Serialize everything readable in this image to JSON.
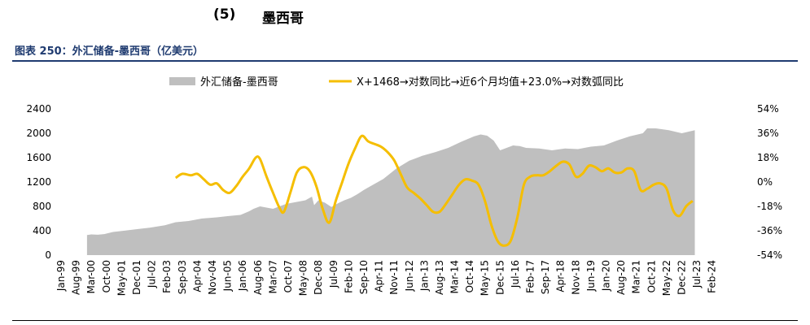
{
  "heading": {
    "number": "(5)",
    "title": "墨西哥"
  },
  "figure_title": "图表 250：外汇储备-墨西哥（亿美元）",
  "chart_data": {
    "type": "area",
    "left_axis": {
      "min": 0,
      "max": 2400,
      "ticks": [
        "2400",
        "2000",
        "1600",
        "1200",
        "800",
        "400",
        "0"
      ]
    },
    "right_axis": {
      "min": -54,
      "max": 54,
      "ticks": [
        "54%",
        "36%",
        "18%",
        "0%",
        "-18%",
        "-36%",
        "-54%"
      ]
    },
    "x_range": [
      "1999-01",
      "2024-07"
    ],
    "x_tick_labels": [
      "Jan-99",
      "Aug-99",
      "Mar-00",
      "Oct-00",
      "May-01",
      "Dec-01",
      "Jul-02",
      "Feb-03",
      "Sep-03",
      "Apr-04",
      "Nov-04",
      "Jun-05",
      "Jan-06",
      "Aug-06",
      "Mar-07",
      "Oct-07",
      "May-08",
      "Dec-08",
      "Jul-09",
      "Feb-10",
      "Sep-10",
      "Apr-11",
      "Nov-11",
      "Jun-12",
      "Jan-13",
      "Aug-13",
      "Mar-14",
      "Oct-14",
      "May-15",
      "Dec-15",
      "Jul-16",
      "Feb-17",
      "Sep-17",
      "Apr-18",
      "Nov-18",
      "Jun-19",
      "Jan-20",
      "Aug-20",
      "Mar-21",
      "Oct-21",
      "May-22",
      "Dec-22",
      "Jul-23",
      "Feb-24"
    ],
    "legend": {
      "position": "top"
    },
    "series": [
      {
        "name": "外汇储备-墨西哥",
        "axis": "left",
        "color": "#bfbfbf",
        "points": [
          [
            "2000-01",
            330
          ],
          [
            "2000-03",
            340
          ],
          [
            "2000-06",
            335
          ],
          [
            "2000-09",
            345
          ],
          [
            "2001-01",
            380
          ],
          [
            "2001-06",
            400
          ],
          [
            "2002-01",
            430
          ],
          [
            "2002-06",
            450
          ],
          [
            "2003-01",
            490
          ],
          [
            "2003-06",
            540
          ],
          [
            "2003-12",
            560
          ],
          [
            "2004-06",
            600
          ],
          [
            "2005-01",
            620
          ],
          [
            "2005-06",
            640
          ],
          [
            "2005-12",
            660
          ],
          [
            "2006-04",
            720
          ],
          [
            "2006-06",
            760
          ],
          [
            "2006-09",
            800
          ],
          [
            "2006-12",
            780
          ],
          [
            "2007-03",
            760
          ],
          [
            "2007-06",
            800
          ],
          [
            "2007-09",
            840
          ],
          [
            "2007-12",
            860
          ],
          [
            "2008-03",
            880
          ],
          [
            "2008-06",
            900
          ],
          [
            "2008-09",
            960
          ],
          [
            "2008-10",
            820
          ],
          [
            "2008-12",
            900
          ],
          [
            "2009-03",
            860
          ],
          [
            "2009-06",
            790
          ],
          [
            "2009-09",
            850
          ],
          [
            "2009-12",
            900
          ],
          [
            "2010-03",
            940
          ],
          [
            "2010-06",
            1000
          ],
          [
            "2010-09",
            1070
          ],
          [
            "2010-12",
            1130
          ],
          [
            "2011-06",
            1250
          ],
          [
            "2011-12",
            1420
          ],
          [
            "2012-06",
            1550
          ],
          [
            "2012-12",
            1630
          ],
          [
            "2013-06",
            1690
          ],
          [
            "2013-12",
            1760
          ],
          [
            "2014-06",
            1860
          ],
          [
            "2014-12",
            1950
          ],
          [
            "2015-03",
            1980
          ],
          [
            "2015-06",
            1960
          ],
          [
            "2015-09",
            1880
          ],
          [
            "2015-12",
            1720
          ],
          [
            "2016-03",
            1760
          ],
          [
            "2016-06",
            1800
          ],
          [
            "2016-09",
            1790
          ],
          [
            "2016-12",
            1760
          ],
          [
            "2017-06",
            1750
          ],
          [
            "2017-12",
            1720
          ],
          [
            "2018-06",
            1750
          ],
          [
            "2018-12",
            1740
          ],
          [
            "2019-06",
            1780
          ],
          [
            "2019-12",
            1800
          ],
          [
            "2020-06",
            1880
          ],
          [
            "2020-12",
            1950
          ],
          [
            "2021-06",
            2000
          ],
          [
            "2021-08",
            2080
          ],
          [
            "2021-12",
            2080
          ],
          [
            "2022-06",
            2050
          ],
          [
            "2022-12",
            2000
          ],
          [
            "2023-06",
            2050
          ]
        ]
      },
      {
        "name": "X+1468→对数同比→近6个月均值+23.0%→对数弧同比",
        "axis": "right",
        "color": "#f5be00",
        "points": [
          [
            "2003-06",
            3
          ],
          [
            "2003-09",
            6
          ],
          [
            "2004-01",
            5
          ],
          [
            "2004-04",
            6
          ],
          [
            "2004-07",
            2
          ],
          [
            "2004-10",
            -2
          ],
          [
            "2005-01",
            -1
          ],
          [
            "2005-04",
            -6
          ],
          [
            "2005-07",
            -8
          ],
          [
            "2005-10",
            -3
          ],
          [
            "2006-01",
            4
          ],
          [
            "2006-04",
            10
          ],
          [
            "2006-07",
            18
          ],
          [
            "2006-09",
            17
          ],
          [
            "2006-12",
            4
          ],
          [
            "2007-03",
            -8
          ],
          [
            "2007-06",
            -19
          ],
          [
            "2007-08",
            -22
          ],
          [
            "2007-11",
            -8
          ],
          [
            "2008-02",
            7
          ],
          [
            "2008-05",
            11
          ],
          [
            "2008-08",
            8
          ],
          [
            "2008-11",
            -3
          ],
          [
            "2009-02",
            -20
          ],
          [
            "2009-05",
            -30
          ],
          [
            "2009-08",
            -14
          ],
          [
            "2009-11",
            0
          ],
          [
            "2010-02",
            14
          ],
          [
            "2010-05",
            25
          ],
          [
            "2010-08",
            34
          ],
          [
            "2010-11",
            30
          ],
          [
            "2011-02",
            28
          ],
          [
            "2011-05",
            26
          ],
          [
            "2011-08",
            22
          ],
          [
            "2011-11",
            16
          ],
          [
            "2012-02",
            6
          ],
          [
            "2012-05",
            -4
          ],
          [
            "2012-08",
            -8
          ],
          [
            "2012-11",
            -12
          ],
          [
            "2013-02",
            -17
          ],
          [
            "2013-05",
            -22
          ],
          [
            "2013-08",
            -22
          ],
          [
            "2013-11",
            -16
          ],
          [
            "2014-02",
            -9
          ],
          [
            "2014-05",
            -2
          ],
          [
            "2014-08",
            2
          ],
          [
            "2014-11",
            1
          ],
          [
            "2015-02",
            -2
          ],
          [
            "2015-05",
            -14
          ],
          [
            "2015-08",
            -32
          ],
          [
            "2015-11",
            -44
          ],
          [
            "2016-02",
            -47
          ],
          [
            "2016-05",
            -43
          ],
          [
            "2016-08",
            -26
          ],
          [
            "2016-11",
            -2
          ],
          [
            "2017-02",
            4
          ],
          [
            "2017-05",
            5
          ],
          [
            "2017-08",
            5
          ],
          [
            "2017-11",
            8
          ],
          [
            "2018-02",
            12
          ],
          [
            "2018-05",
            15
          ],
          [
            "2018-08",
            13
          ],
          [
            "2018-11",
            4
          ],
          [
            "2019-02",
            6
          ],
          [
            "2019-05",
            12
          ],
          [
            "2019-08",
            11
          ],
          [
            "2019-11",
            8
          ],
          [
            "2020-02",
            10
          ],
          [
            "2020-05",
            7
          ],
          [
            "2020-08",
            7
          ],
          [
            "2020-11",
            10
          ],
          [
            "2021-02",
            8
          ],
          [
            "2021-05",
            -6
          ],
          [
            "2021-08",
            -5
          ],
          [
            "2021-11",
            -2
          ],
          [
            "2022-02",
            -1
          ],
          [
            "2022-05",
            -5
          ],
          [
            "2022-08",
            -21
          ],
          [
            "2022-11",
            -25
          ],
          [
            "2023-02",
            -18
          ],
          [
            "2023-05",
            -14
          ]
        ]
      }
    ]
  }
}
